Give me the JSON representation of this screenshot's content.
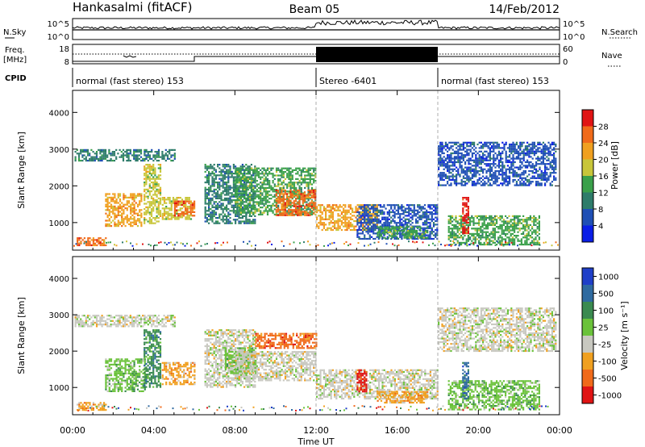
{
  "header": {
    "station": "Hankasalmi (fitACF)",
    "beam": "Beam 05",
    "date": "14/Feb/2012"
  },
  "panels": {
    "nsky": {
      "left_label": "N.Sky",
      "left_ticks": [
        "10^5",
        "10^0"
      ],
      "right_label": "N.Search",
      "right_ticks": [
        "10^5",
        "10^0"
      ]
    },
    "freq": {
      "left_label_1": "Freq.",
      "left_label_2": "[MHz]",
      "left_ticks": [
        "18",
        "8"
      ],
      "right_label": "Nave",
      "right_ticks": [
        "60",
        "0"
      ]
    },
    "cpid": {
      "label": "CPID",
      "segments": [
        {
          "start_hour": 0,
          "end_hour": 12,
          "text": "normal (fast stereo) 153"
        },
        {
          "start_hour": 12,
          "end_hour": 18,
          "text": "Stereo -6401"
        },
        {
          "start_hour": 18,
          "end_hour": 24,
          "text": "normal (fast stereo) 153"
        }
      ]
    }
  },
  "chart_data": [
    {
      "type": "heatmap",
      "name": "power",
      "ylabel": "Slant Range [km]",
      "ylim": [
        250,
        4600
      ],
      "yticks": [
        "1000",
        "2000",
        "3000",
        "4000"
      ],
      "x_range_hours": [
        0,
        24
      ],
      "colorbar_label": "Power [dB]",
      "colorbar_ticks": [
        "4",
        "8",
        "12",
        "16",
        "20",
        "24",
        "28"
      ],
      "colors": [
        "#0a1ee6",
        "#1f4fb5",
        "#2e7c6a",
        "#3aa04a",
        "#c8c63a",
        "#f0a020",
        "#f06a1a",
        "#e01414"
      ],
      "regions": [
        {
          "t0": 0.1,
          "t1": 5.0,
          "r0": 2700,
          "r1": 3000,
          "level": 2
        },
        {
          "t0": 1.6,
          "t1": 3.4,
          "r0": 900,
          "r1": 1800,
          "level": 5
        },
        {
          "t0": 3.5,
          "t1": 4.3,
          "r0": 1000,
          "r1": 2600,
          "level": 4
        },
        {
          "t0": 4.4,
          "t1": 5.8,
          "r0": 1100,
          "r1": 1700,
          "level": 4
        },
        {
          "t0": 5.0,
          "t1": 6.0,
          "r0": 1200,
          "r1": 1600,
          "level": 6
        },
        {
          "t0": 0.2,
          "t1": 1.6,
          "r0": 380,
          "r1": 600,
          "level": 6
        },
        {
          "t0": 6.5,
          "t1": 9.0,
          "r0": 1000,
          "r1": 2600,
          "level": 2
        },
        {
          "t0": 8.0,
          "t1": 12.0,
          "r0": 1200,
          "r1": 2500,
          "level": 3
        },
        {
          "t0": 10.0,
          "t1": 12.0,
          "r0": 1200,
          "r1": 1900,
          "level": 6
        },
        {
          "t0": 12.0,
          "t1": 15.0,
          "r0": 800,
          "r1": 1500,
          "level": 5
        },
        {
          "t0": 14.0,
          "t1": 18.0,
          "r0": 550,
          "r1": 1500,
          "level": 1
        },
        {
          "t0": 15.0,
          "t1": 17.5,
          "r0": 600,
          "r1": 900,
          "level": 3
        },
        {
          "t0": 18.0,
          "t1": 23.8,
          "r0": 2000,
          "r1": 3200,
          "level": 1
        },
        {
          "t0": 18.5,
          "t1": 23.0,
          "r0": 400,
          "r1": 1200,
          "level": 3
        },
        {
          "t0": 19.2,
          "t1": 19.5,
          "r0": 700,
          "r1": 1700,
          "level": 7
        }
      ]
    },
    {
      "type": "heatmap",
      "name": "velocity",
      "ylabel": "Slant Range [km]",
      "ylim": [
        250,
        4600
      ],
      "yticks": [
        "1000",
        "2000",
        "3000",
        "4000"
      ],
      "x_range_hours": [
        0,
        24
      ],
      "xticks": [
        "00:00",
        "04:00",
        "08:00",
        "12:00",
        "16:00",
        "20:00",
        "00:00"
      ],
      "xlabel": "Time UT",
      "colorbar_label": "Velocity [m s⁻¹]",
      "colorbar_ticks": [
        "1000",
        "500",
        "100",
        "25",
        "-25",
        "-100",
        "-500",
        "-1000"
      ],
      "colors": [
        "#1f3fc8",
        "#2f6aa0",
        "#3a8a50",
        "#6ac23a",
        "#c8c8c0",
        "#f0a020",
        "#f06a1a",
        "#e01414"
      ],
      "regions": [
        {
          "t0": 0.1,
          "t1": 5.0,
          "r0": 2700,
          "r1": 3000,
          "level": 4
        },
        {
          "t0": 1.6,
          "t1": 3.6,
          "r0": 900,
          "r1": 1800,
          "level": 3
        },
        {
          "t0": 3.5,
          "t1": 4.3,
          "r0": 1000,
          "r1": 2600,
          "level": 2
        },
        {
          "t0": 4.4,
          "t1": 6.0,
          "r0": 1100,
          "r1": 1700,
          "level": 5
        },
        {
          "t0": 0.2,
          "t1": 1.6,
          "r0": 380,
          "r1": 600,
          "level": 5
        },
        {
          "t0": 6.5,
          "t1": 9.0,
          "r0": 1000,
          "r1": 2600,
          "level": 4
        },
        {
          "t0": 7.5,
          "t1": 9.0,
          "r0": 1400,
          "r1": 2100,
          "level": 3
        },
        {
          "t0": 9.0,
          "t1": 12.0,
          "r0": 2100,
          "r1": 2500,
          "level": 6
        },
        {
          "t0": 8.0,
          "t1": 12.0,
          "r0": 1200,
          "r1": 2000,
          "level": 4
        },
        {
          "t0": 12.0,
          "t1": 18.0,
          "r0": 700,
          "r1": 1500,
          "level": 4
        },
        {
          "t0": 14.0,
          "t1": 14.5,
          "r0": 900,
          "r1": 1500,
          "level": 7
        },
        {
          "t0": 15.0,
          "t1": 17.5,
          "r0": 600,
          "r1": 900,
          "level": 5
        },
        {
          "t0": 18.0,
          "t1": 23.8,
          "r0": 2000,
          "r1": 3200,
          "level": 4
        },
        {
          "t0": 18.5,
          "t1": 23.0,
          "r0": 400,
          "r1": 1200,
          "level": 3
        },
        {
          "t0": 19.2,
          "t1": 19.5,
          "r0": 700,
          "r1": 1700,
          "level": 1
        }
      ]
    }
  ]
}
